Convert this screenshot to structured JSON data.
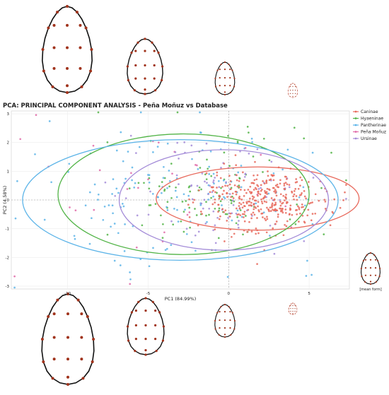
{
  "chart_data": {
    "type": "scatter",
    "title": "PCA: PRINCIPAL COMPONENT ANALYSIS - Peña Moñuz vs Database",
    "xlabel": "PC1 (84.99%)",
    "ylabel": "PC2 (4.58%)",
    "xlim": [
      -13.5,
      7.5
    ],
    "ylim": [
      -3.1,
      3.1
    ],
    "x_ticks": [
      -10,
      -5,
      0,
      5
    ],
    "y_ticks": [
      -3,
      -2,
      -1,
      0,
      1,
      2,
      3
    ],
    "grid": true,
    "legend_position": "right",
    "series": [
      {
        "name": "Caninae",
        "color": "#e8695c",
        "center": [
          2.2,
          0.0
        ],
        "spread": [
          1.9,
          0.55
        ],
        "count": 360,
        "ellipse": {
          "center": [
            1.8,
            0.05
          ],
          "radii": [
            6.3,
            1.1
          ]
        }
      },
      {
        "name": "Hyaeninae",
        "color": "#52b447",
        "center": [
          -1.5,
          0.3
        ],
        "spread": [
          3.2,
          1.0
        ],
        "count": 110,
        "ellipse": {
          "center": [
            -2.8,
            0.2
          ],
          "radii": [
            7.8,
            2.1
          ]
        }
      },
      {
        "name": "Pantherinae",
        "color": "#5cb4e8",
        "center": [
          -3.0,
          0.2
        ],
        "spread": [
          4.5,
          1.2
        ],
        "count": 150,
        "ellipse": {
          "center": [
            -3.0,
            0.0
          ],
          "radii": [
            9.8,
            2.1
          ]
        }
      },
      {
        "name": "Peña Moñuz",
        "color": "#e06aa8",
        "center": [
          -3.5,
          0.5
        ],
        "spread": [
          4.5,
          1.3
        ],
        "count": 30,
        "ellipse": null
      },
      {
        "name": "Ursinae",
        "color": "#a48cd8",
        "center": [
          -0.5,
          0.2
        ],
        "spread": [
          3.0,
          0.9
        ],
        "count": 90,
        "ellipse": {
          "center": [
            -0.3,
            0.0
          ],
          "radii": [
            6.5,
            1.75
          ]
        }
      }
    ],
    "annotation": "[mean form]"
  },
  "icons": {
    "outline_color": "#111111",
    "landmark_color": "#a0331c",
    "faint_outline_color": "#e87a6a"
  }
}
